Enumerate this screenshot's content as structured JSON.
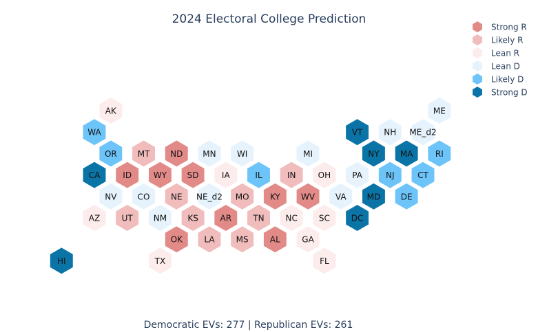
{
  "chart_data": {
    "type": "scatter",
    "title": "2024 Electoral College Prediction",
    "footer": "Democratic EVs: 277 | Republican EVs: 261",
    "legend": {
      "placement": "top-right",
      "entries": [
        {
          "key": "strong_r",
          "label": "Strong R",
          "color": "#e28a88"
        },
        {
          "key": "likely_r",
          "label": "Likely R",
          "color": "#f0bcbc"
        },
        {
          "key": "lean_r",
          "label": "Lean R",
          "color": "#fcecec"
        },
        {
          "key": "lean_d",
          "label": "Lean D",
          "color": "#e6f3fc"
        },
        {
          "key": "likely_d",
          "label": "Likely D",
          "color": "#6cc4f9"
        },
        {
          "key": "strong_d",
          "label": "Strong D",
          "color": "#0a74a6"
        }
      ]
    },
    "grid": false,
    "states": [
      {
        "abbr": "AK",
        "category": "lean_r",
        "col": 1,
        "row": 0
      },
      {
        "abbr": "ME",
        "category": "lean_d",
        "col": 11,
        "row": 0
      },
      {
        "abbr": "WA",
        "category": "likely_d",
        "col": 0.5,
        "row": 1
      },
      {
        "abbr": "VT",
        "category": "strong_d",
        "col": 8.5,
        "row": 1
      },
      {
        "abbr": "NH",
        "category": "lean_d",
        "col": 9.5,
        "row": 1
      },
      {
        "abbr": "ME_d2",
        "category": "lean_d",
        "col": 10.5,
        "row": 1
      },
      {
        "abbr": "OR",
        "category": "likely_d",
        "col": 1,
        "row": 2
      },
      {
        "abbr": "MT",
        "category": "likely_r",
        "col": 2,
        "row": 2
      },
      {
        "abbr": "ND",
        "category": "strong_r",
        "col": 3,
        "row": 2
      },
      {
        "abbr": "MN",
        "category": "lean_d",
        "col": 4,
        "row": 2
      },
      {
        "abbr": "WI",
        "category": "lean_d",
        "col": 5,
        "row": 2
      },
      {
        "abbr": "MI",
        "category": "lean_d",
        "col": 7,
        "row": 2
      },
      {
        "abbr": "NY",
        "category": "strong_d",
        "col": 9,
        "row": 2
      },
      {
        "abbr": "MA",
        "category": "strong_d",
        "col": 10,
        "row": 2
      },
      {
        "abbr": "RI",
        "category": "likely_d",
        "col": 11,
        "row": 2
      },
      {
        "abbr": "CA",
        "category": "strong_d",
        "col": 0.5,
        "row": 3
      },
      {
        "abbr": "ID",
        "category": "strong_r",
        "col": 1.5,
        "row": 3
      },
      {
        "abbr": "WY",
        "category": "strong_r",
        "col": 2.5,
        "row": 3
      },
      {
        "abbr": "SD",
        "category": "strong_r",
        "col": 3.5,
        "row": 3
      },
      {
        "abbr": "IA",
        "category": "lean_r",
        "col": 4.5,
        "row": 3
      },
      {
        "abbr": "IL",
        "category": "likely_d",
        "col": 5.5,
        "row": 3
      },
      {
        "abbr": "IN",
        "category": "likely_r",
        "col": 6.5,
        "row": 3
      },
      {
        "abbr": "OH",
        "category": "lean_r",
        "col": 7.5,
        "row": 3
      },
      {
        "abbr": "PA",
        "category": "lean_d",
        "col": 8.5,
        "row": 3
      },
      {
        "abbr": "NJ",
        "category": "likely_d",
        "col": 9.5,
        "row": 3
      },
      {
        "abbr": "CT",
        "category": "likely_d",
        "col": 10.5,
        "row": 3
      },
      {
        "abbr": "NV",
        "category": "lean_d",
        "col": 1,
        "row": 4
      },
      {
        "abbr": "CO",
        "category": "lean_d",
        "col": 2,
        "row": 4
      },
      {
        "abbr": "NE",
        "category": "likely_r",
        "col": 3,
        "row": 4
      },
      {
        "abbr": "NE_d2",
        "category": "lean_d",
        "col": 4,
        "row": 4
      },
      {
        "abbr": "MO",
        "category": "likely_r",
        "col": 5,
        "row": 4
      },
      {
        "abbr": "KY",
        "category": "strong_r",
        "col": 6,
        "row": 4
      },
      {
        "abbr": "WV",
        "category": "strong_r",
        "col": 7,
        "row": 4
      },
      {
        "abbr": "VA",
        "category": "lean_d",
        "col": 8,
        "row": 4
      },
      {
        "abbr": "MD",
        "category": "strong_d",
        "col": 9,
        "row": 4
      },
      {
        "abbr": "DE",
        "category": "likely_d",
        "col": 10,
        "row": 4
      },
      {
        "abbr": "AZ",
        "category": "lean_r",
        "col": 0.5,
        "row": 5
      },
      {
        "abbr": "UT",
        "category": "likely_r",
        "col": 1.5,
        "row": 5
      },
      {
        "abbr": "NM",
        "category": "lean_d",
        "col": 2.5,
        "row": 5
      },
      {
        "abbr": "KS",
        "category": "likely_r",
        "col": 3.5,
        "row": 5
      },
      {
        "abbr": "AR",
        "category": "strong_r",
        "col": 4.5,
        "row": 5
      },
      {
        "abbr": "TN",
        "category": "likely_r",
        "col": 5.5,
        "row": 5
      },
      {
        "abbr": "NC",
        "category": "lean_r",
        "col": 6.5,
        "row": 5
      },
      {
        "abbr": "SC",
        "category": "lean_r",
        "col": 7.5,
        "row": 5
      },
      {
        "abbr": "DC",
        "category": "strong_d",
        "col": 8.5,
        "row": 5
      },
      {
        "abbr": "OK",
        "category": "strong_r",
        "col": 3,
        "row": 6
      },
      {
        "abbr": "LA",
        "category": "likely_r",
        "col": 4,
        "row": 6
      },
      {
        "abbr": "MS",
        "category": "likely_r",
        "col": 5,
        "row": 6
      },
      {
        "abbr": "AL",
        "category": "strong_r",
        "col": 6,
        "row": 6
      },
      {
        "abbr": "GA",
        "category": "lean_r",
        "col": 7,
        "row": 6
      },
      {
        "abbr": "HI",
        "category": "strong_d",
        "col": -0.5,
        "row": 7
      },
      {
        "abbr": "TX",
        "category": "lean_r",
        "col": 2.5,
        "row": 7
      },
      {
        "abbr": "FL",
        "category": "lean_r",
        "col": 7.5,
        "row": 7
      }
    ]
  }
}
